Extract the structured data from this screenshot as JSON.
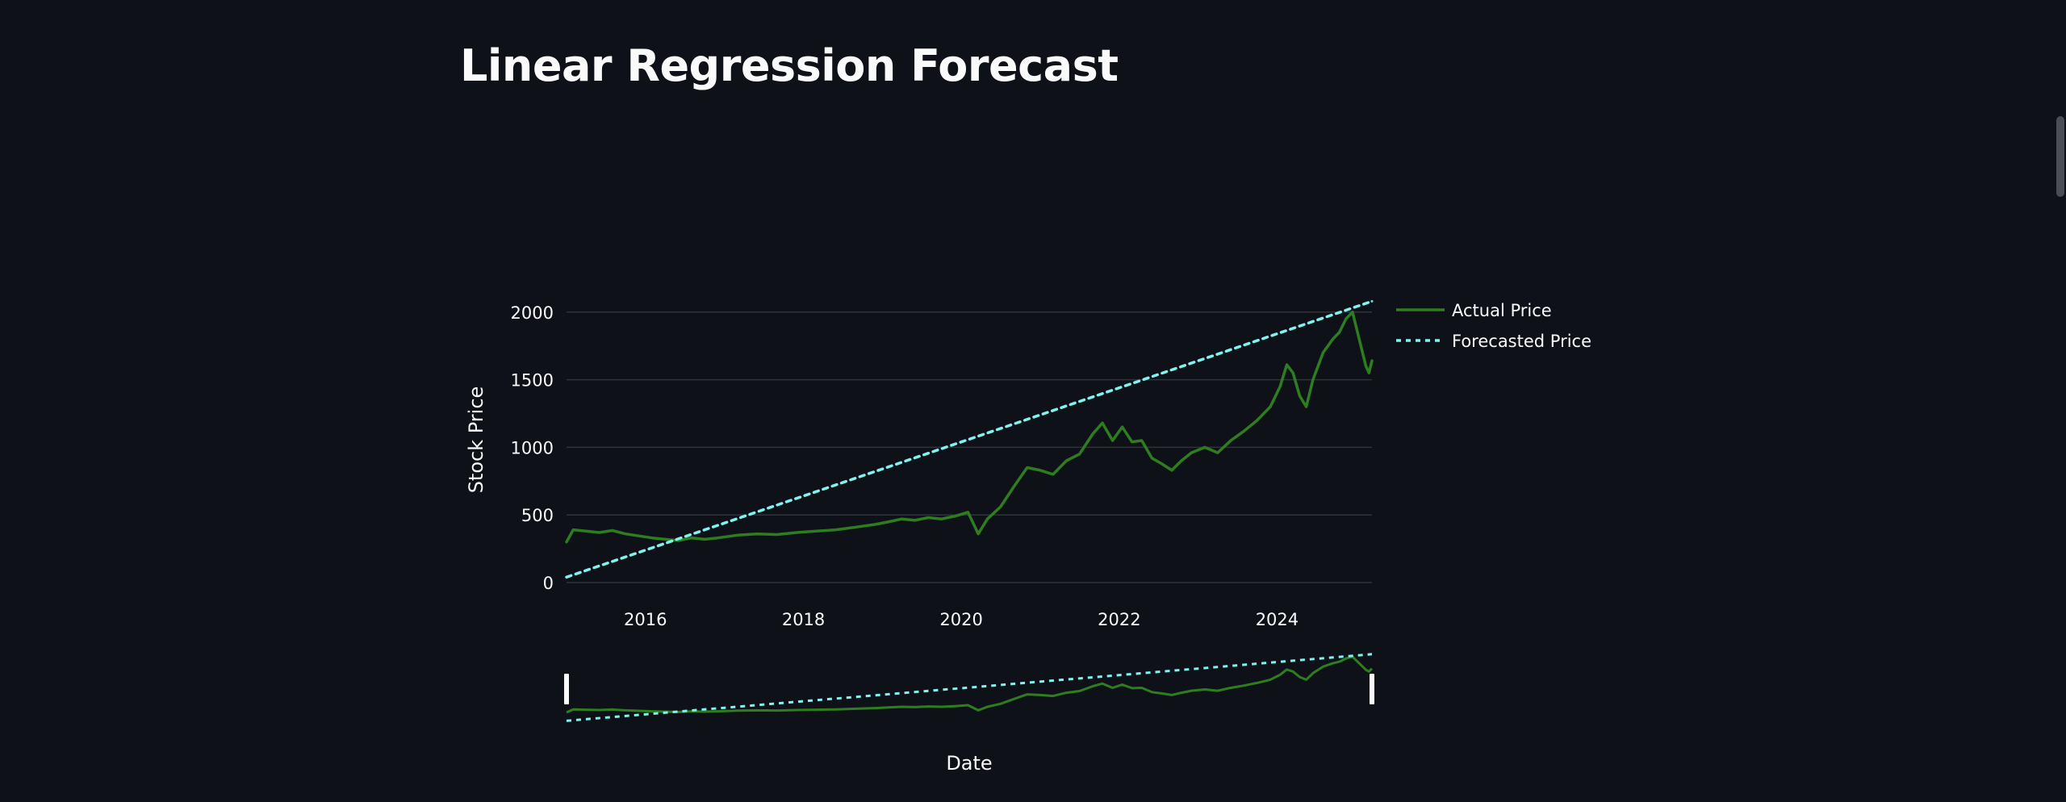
{
  "page": {
    "title": "Linear Regression Forecast"
  },
  "colors": {
    "background": "#0e1117",
    "actual": "#2e7d1f",
    "forecast": "#7ff3f0",
    "text": "#fafafa",
    "grid": "#31333b"
  },
  "chart_data": {
    "type": "line",
    "title": "",
    "xlabel": "Date",
    "ylabel": "Stock Price",
    "xlim": [
      "2015-01-01",
      "2025-03-15"
    ],
    "ylim": [
      0,
      2100
    ],
    "x_ticks": [
      "2016",
      "2018",
      "2020",
      "2022",
      "2024"
    ],
    "y_ticks": [
      "0",
      "500",
      "1000",
      "1500",
      "2000"
    ],
    "grid": true,
    "legend_position": "top-right",
    "range_slider": true,
    "series": [
      {
        "name": "Actual Price",
        "style": "solid",
        "x": [
          "2015-01-01",
          "2015-02-01",
          "2015-04-01",
          "2015-06-01",
          "2015-08-01",
          "2015-10-01",
          "2015-12-01",
          "2016-02-01",
          "2016-04-01",
          "2016-06-01",
          "2016-08-01",
          "2016-10-01",
          "2016-12-01",
          "2017-03-01",
          "2017-06-01",
          "2017-09-01",
          "2017-12-01",
          "2018-03-01",
          "2018-06-01",
          "2018-09-01",
          "2018-12-01",
          "2019-02-01",
          "2019-04-01",
          "2019-06-01",
          "2019-08-01",
          "2019-10-01",
          "2019-12-01",
          "2020-02-01",
          "2020-03-20",
          "2020-05-01",
          "2020-07-01",
          "2020-09-01",
          "2020-11-01",
          "2021-01-01",
          "2021-03-01",
          "2021-05-01",
          "2021-07-01",
          "2021-09-01",
          "2021-10-15",
          "2021-12-01",
          "2022-01-15",
          "2022-03-01",
          "2022-04-15",
          "2022-06-01",
          "2022-07-15",
          "2022-09-01",
          "2022-10-15",
          "2022-12-01",
          "2023-02-01",
          "2023-04-01",
          "2023-06-01",
          "2023-08-01",
          "2023-10-01",
          "2023-12-01",
          "2024-01-15",
          "2024-02-15",
          "2024-03-15",
          "2024-04-15",
          "2024-05-15",
          "2024-06-15",
          "2024-08-01",
          "2024-09-15",
          "2024-10-15",
          "2024-11-15",
          "2024-12-15",
          "2025-01-15",
          "2025-02-15",
          "2025-03-01",
          "2025-03-15"
        ],
        "y": [
          300,
          390,
          380,
          370,
          385,
          360,
          345,
          330,
          320,
          310,
          330,
          320,
          330,
          350,
          360,
          355,
          370,
          380,
          390,
          410,
          430,
          450,
          470,
          460,
          480,
          470,
          490,
          520,
          360,
          470,
          560,
          710,
          850,
          830,
          800,
          900,
          950,
          1100,
          1180,
          1050,
          1150,
          1040,
          1050,
          920,
          880,
          830,
          900,
          960,
          1000,
          960,
          1050,
          1120,
          1200,
          1300,
          1450,
          1610,
          1550,
          1380,
          1300,
          1500,
          1700,
          1800,
          1850,
          1950,
          2000,
          1800,
          1600,
          1550,
          1640
        ]
      },
      {
        "name": "Forecasted Price",
        "style": "dotted",
        "x": [
          "2015-01-01",
          "2025-03-15"
        ],
        "y": [
          40,
          2080
        ]
      }
    ]
  }
}
